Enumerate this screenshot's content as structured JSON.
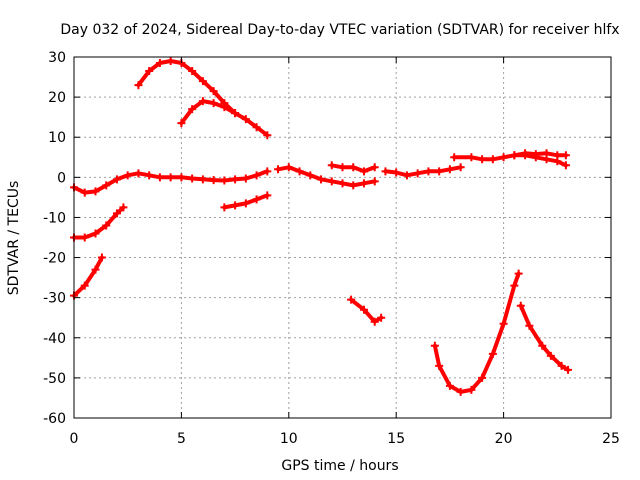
{
  "chart_data": {
    "type": "scatter",
    "title": "Day 032 of 2024, Sidereal Day-to-day VTEC variation (SDTVAR) for receiver hlfx",
    "xlabel": "GPS time / hours",
    "ylabel": "SDTVAR / TECUs",
    "xlim": [
      0,
      25
    ],
    "ylim": [
      -60,
      30
    ],
    "xticks": [
      0,
      5,
      10,
      15,
      20,
      25
    ],
    "yticks": [
      -60,
      -50,
      -40,
      -30,
      -20,
      -10,
      0,
      10,
      20,
      30
    ],
    "xtick_labels": [
      "0",
      "5",
      "10",
      "15",
      "20",
      "25"
    ],
    "ytick_labels": [
      "-60",
      "-50",
      "-40",
      "-30",
      "-20",
      "-10",
      "0",
      "10",
      "20",
      "30"
    ],
    "grid": true,
    "color": "#ff0000",
    "series": [
      {
        "name": "arc-main-1",
        "points": [
          [
            0,
            -2.5
          ],
          [
            0.5,
            -3.8
          ],
          [
            1,
            -3.5
          ],
          [
            1.5,
            -2
          ],
          [
            2,
            -0.5
          ],
          [
            2.5,
            0.5
          ],
          [
            3,
            1
          ],
          [
            3.5,
            0.5
          ],
          [
            4,
            0
          ],
          [
            4.5,
            0
          ],
          [
            5,
            0
          ],
          [
            5.5,
            -0.3
          ],
          [
            6,
            -0.5
          ],
          [
            6.5,
            -0.7
          ],
          [
            7,
            -0.8
          ],
          [
            7.5,
            -0.5
          ],
          [
            8,
            -0.3
          ],
          [
            8.5,
            0.5
          ],
          [
            9,
            1.5
          ]
        ]
      },
      {
        "name": "arc-main-2",
        "points": [
          [
            9.5,
            2
          ],
          [
            10,
            2.5
          ],
          [
            10.5,
            1.5
          ],
          [
            11,
            0.5
          ],
          [
            11.5,
            -0.5
          ],
          [
            12,
            -1
          ],
          [
            12.5,
            -1.5
          ],
          [
            13,
            -2
          ],
          [
            13.5,
            -1.5
          ],
          [
            14,
            -1
          ]
        ]
      },
      {
        "name": "arc-main-3",
        "points": [
          [
            14.5,
            1.5
          ],
          [
            15,
            1.2
          ],
          [
            15.5,
            0.5
          ],
          [
            16,
            1
          ],
          [
            16.5,
            1.5
          ],
          [
            17,
            1.5
          ],
          [
            17.5,
            2
          ],
          [
            18,
            2.5
          ]
        ]
      },
      {
        "name": "arc-main-4",
        "points": [
          [
            17.7,
            5
          ],
          [
            18.5,
            5
          ],
          [
            19,
            4.5
          ],
          [
            19.5,
            4.5
          ],
          [
            20,
            5
          ],
          [
            20.5,
            5.5
          ],
          [
            21,
            6
          ],
          [
            21.5,
            5.8
          ],
          [
            22,
            6
          ],
          [
            22.5,
            5.5
          ],
          [
            22.9,
            5.5
          ]
        ]
      },
      {
        "name": "arc-late",
        "points": [
          [
            20.5,
            5.5
          ],
          [
            21,
            5.5
          ],
          [
            21.5,
            5
          ],
          [
            22,
            4.5
          ],
          [
            22.5,
            4
          ],
          [
            22.9,
            3
          ]
        ]
      },
      {
        "name": "arc-peak",
        "points": [
          [
            3,
            23
          ],
          [
            3.5,
            26.5
          ],
          [
            4,
            28.5
          ],
          [
            4.5,
            29
          ],
          [
            5,
            28.5
          ],
          [
            5.5,
            26.5
          ],
          [
            6,
            24
          ],
          [
            6.5,
            21.5
          ],
          [
            7,
            18.5
          ],
          [
            7.5,
            16
          ]
        ]
      },
      {
        "name": "arc-hump",
        "points": [
          [
            5,
            13.5
          ],
          [
            5.5,
            17
          ],
          [
            6,
            19
          ],
          [
            6.5,
            18.5
          ],
          [
            7,
            17.5
          ],
          [
            7.5,
            16
          ],
          [
            8,
            14.5
          ],
          [
            8.5,
            12.5
          ],
          [
            9,
            10.5
          ]
        ]
      },
      {
        "name": "arc-low-a",
        "points": [
          [
            7,
            -7.5
          ],
          [
            7.5,
            -7
          ],
          [
            8,
            -6.5
          ],
          [
            8.5,
            -5.5
          ],
          [
            9,
            -4.5
          ]
        ]
      },
      {
        "name": "arc-low-b",
        "points": [
          [
            0,
            -15
          ],
          [
            0.5,
            -15
          ],
          [
            1,
            -14
          ],
          [
            1.5,
            -12
          ],
          [
            2,
            -9
          ],
          [
            2.3,
            -7.5
          ]
        ]
      },
      {
        "name": "arc-low-c",
        "points": [
          [
            0,
            -29.5
          ],
          [
            0.5,
            -27
          ],
          [
            1,
            -23
          ],
          [
            1.3,
            -20
          ]
        ]
      },
      {
        "name": "arc-mid",
        "points": [
          [
            12,
            3
          ],
          [
            12.5,
            2.5
          ],
          [
            13,
            2.5
          ],
          [
            13.5,
            1.5
          ],
          [
            14,
            2.5
          ]
        ]
      },
      {
        "name": "arc-dip-small",
        "points": [
          [
            12.9,
            -30.5
          ],
          [
            13.5,
            -33
          ],
          [
            14,
            -36
          ],
          [
            14.3,
            -35
          ]
        ]
      },
      {
        "name": "arc-u",
        "points": [
          [
            16.8,
            -42
          ],
          [
            17,
            -47
          ],
          [
            17.5,
            -52
          ],
          [
            18,
            -53.5
          ],
          [
            18.5,
            -53
          ],
          [
            19,
            -50
          ],
          [
            19.5,
            -44
          ],
          [
            20,
            -36.5
          ],
          [
            20.5,
            -27
          ],
          [
            20.7,
            -24
          ]
        ]
      },
      {
        "name": "arc-descend",
        "points": [
          [
            20.8,
            -32
          ],
          [
            21.2,
            -37
          ],
          [
            21.8,
            -42
          ],
          [
            22.2,
            -44.5
          ],
          [
            22.7,
            -47
          ],
          [
            23,
            -48
          ]
        ]
      }
    ]
  }
}
